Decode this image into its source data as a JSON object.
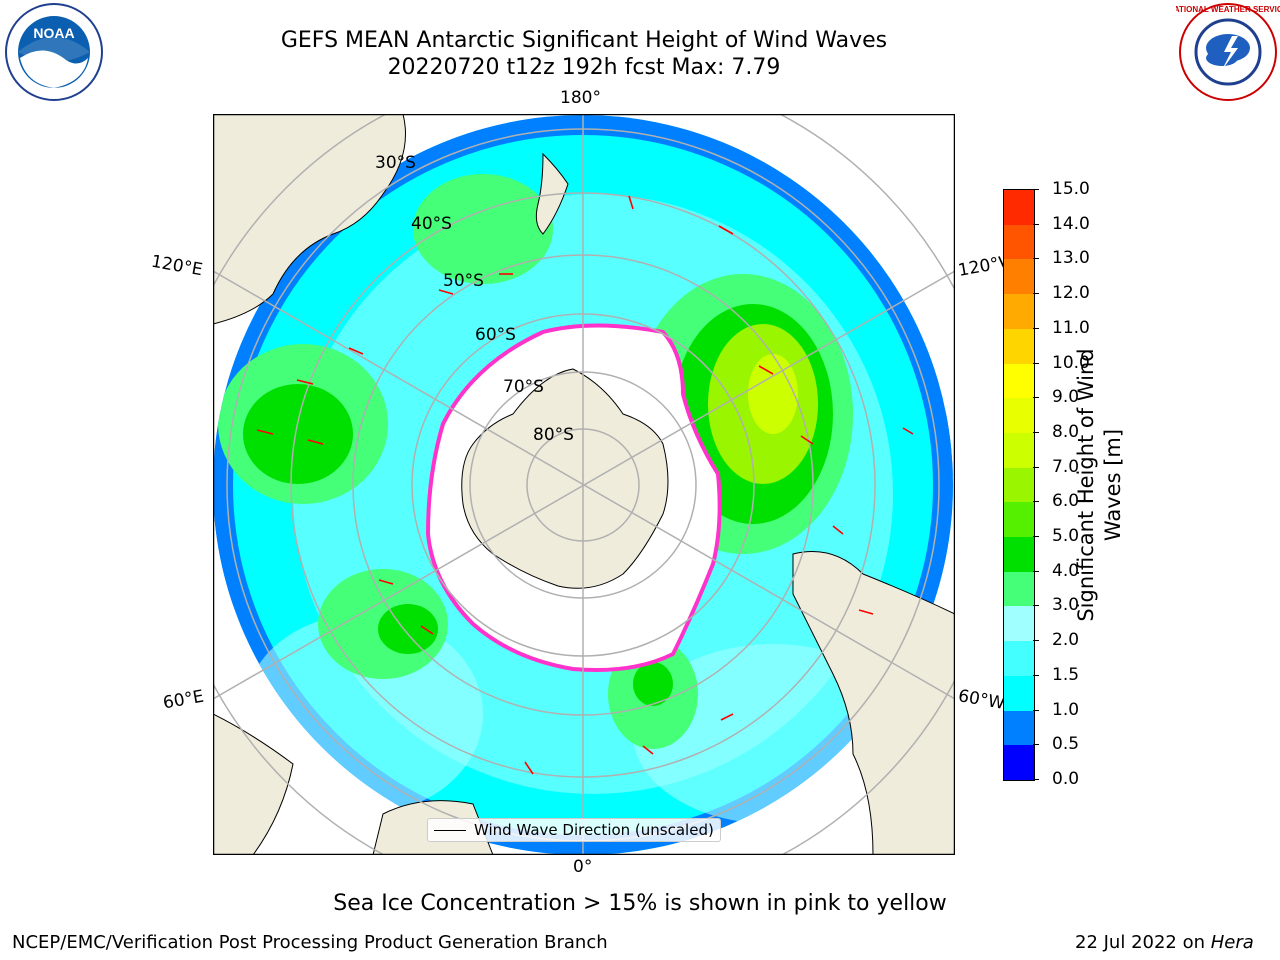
{
  "title": {
    "line1": "GEFS MEAN Antarctic Significant Height of Wind Waves",
    "line2": "20220720 t12z 192h fcst   Max: 7.79"
  },
  "logos": {
    "left": "NOAA",
    "right": "NATIONAL WEATHER SERVICE"
  },
  "map": {
    "longitude_labels": {
      "top": "180°",
      "bottom": "0°",
      "upper_left": "120°E",
      "upper_right": "120°W",
      "lower_left": "60°E",
      "lower_right": "60°W"
    },
    "latitude_labels": [
      "30°S",
      "40°S",
      "50°S",
      "60°S",
      "70°S",
      "80°S"
    ],
    "legend_label": "Wind Wave Direction (unscaled)",
    "colors": {
      "land": "#efecdc",
      "ocean_1": "#00ffff",
      "ocean_2": "#a0ffff",
      "ocean_3": "#33ff66",
      "ocean_4": "#00e000",
      "blue": "#0080ff",
      "dark_blue": "#0000ff",
      "arrow": "#ff0000",
      "ice_edge": "#ff33cc"
    }
  },
  "colorbar": {
    "label": "Significant Height of Wind Waves [m]",
    "ticks": [
      "0.0",
      "0.5",
      "1.0",
      "1.5",
      "2.0",
      "3.0",
      "4.0",
      "5.0",
      "6.0",
      "7.0",
      "8.0",
      "9.0",
      "10.0",
      "11.0",
      "12.0",
      "13.0",
      "14.0",
      "15.0"
    ],
    "colors": [
      "#0000ff",
      "#0080ff",
      "#00ffff",
      "#44ffff",
      "#a0ffff",
      "#44ff77",
      "#00e000",
      "#55f000",
      "#99f500",
      "#ccff00",
      "#e8ff00",
      "#ffff00",
      "#ffd500",
      "#ffaa00",
      "#ff8000",
      "#ff5500",
      "#ff2a00"
    ]
  },
  "notes": {
    "sea_ice": "Sea Ice Concentration > 15% is shown in pink to yellow",
    "credit": "NCEP/EMC/Verification Post Processing Product Generation Branch",
    "date": "22 Jul 2022 on ",
    "machine": "Hera"
  }
}
